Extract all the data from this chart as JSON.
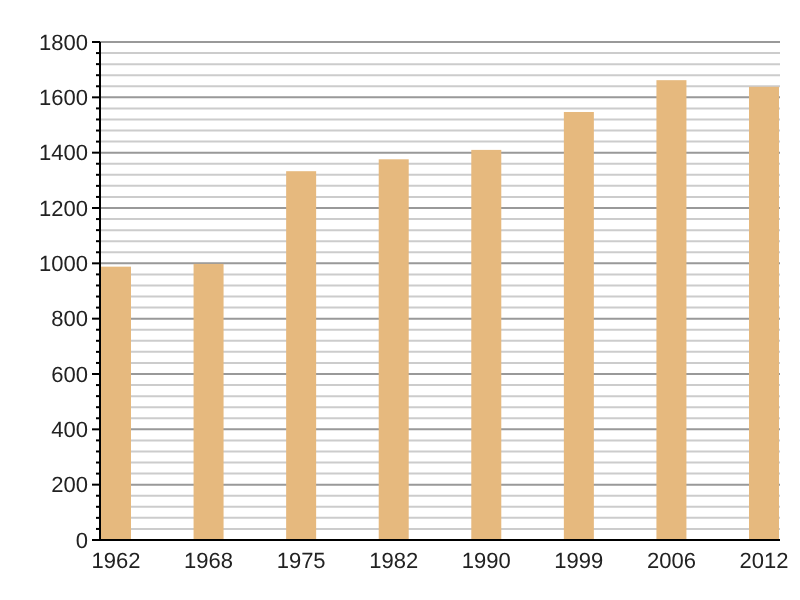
{
  "chart_data": {
    "type": "bar",
    "categories": [
      "1962",
      "1968",
      "1975",
      "1982",
      "1990",
      "1999",
      "2006",
      "2012"
    ],
    "values": [
      988,
      998,
      1333,
      1376,
      1410,
      1547,
      1662,
      1638
    ],
    "color": "#e6b97e",
    "ylim": [
      0,
      1800
    ],
    "yticks": [
      0,
      {
        "value": 40,
        "label": null
      },
      {
        "value": 80,
        "label": null
      },
      {
        "value": 120,
        "label": null
      },
      {
        "value": 160,
        "label": null
      },
      200,
      {
        "value": 240,
        "label": null
      },
      {
        "value": 280,
        "label": null
      },
      {
        "value": 320,
        "label": null
      },
      {
        "value": 360,
        "label": null
      },
      400,
      {
        "value": 440,
        "label": null
      },
      {
        "value": 480,
        "label": null
      },
      {
        "value": 520,
        "label": null
      },
      {
        "value": 560,
        "label": null
      },
      600,
      {
        "value": 640,
        "label": null
      },
      {
        "value": 680,
        "label": null
      },
      {
        "value": 720,
        "label": null
      },
      {
        "value": 760,
        "label": null
      },
      800,
      {
        "value": 840,
        "label": null
      },
      {
        "value": 880,
        "label": null
      },
      {
        "value": 920,
        "label": null
      },
      {
        "value": 960,
        "label": null
      },
      1000,
      {
        "value": 1040,
        "label": null
      },
      {
        "value": 1080,
        "label": null
      },
      {
        "value": 1120,
        "label": null
      },
      {
        "value": 1160,
        "label": null
      },
      1200,
      {
        "value": 1240,
        "label": null
      },
      {
        "value": 1280,
        "label": null
      },
      {
        "value": 1320,
        "label": null
      },
      {
        "value": 1360,
        "label": null
      },
      1400,
      {
        "value": 1440,
        "label": null
      },
      {
        "value": 1480,
        "label": null
      },
      {
        "value": 1520,
        "label": null
      },
      {
        "value": 1560,
        "label": null
      },
      1600,
      {
        "value": 1640,
        "label": null
      },
      {
        "value": 1680,
        "label": null
      },
      {
        "value": 1720,
        "label": null
      },
      {
        "value": 1760,
        "label": null
      },
      1800
    ],
    "grid": "y"
  }
}
